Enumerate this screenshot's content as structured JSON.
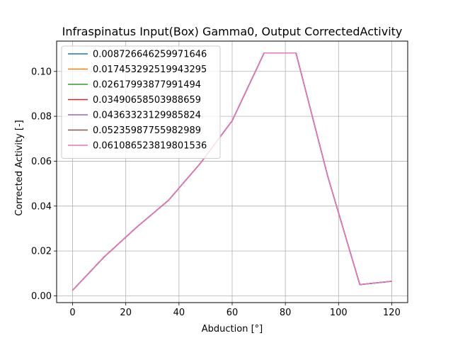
{
  "chart_data": {
    "type": "line",
    "title": "Infraspinatus Input(Box) Gamma0, Output CorrectedActivity",
    "xlabel": "Abduction [°]",
    "ylabel": "Corrected Activity [-]",
    "xlim": [
      -6,
      126
    ],
    "ylim": [
      -0.003,
      0.1135
    ],
    "xticks": [
      0,
      20,
      40,
      60,
      80,
      100,
      120
    ],
    "xtick_labels": [
      "0",
      "20",
      "40",
      "60",
      "80",
      "100",
      "120"
    ],
    "yticks": [
      0.0,
      0.02,
      0.04,
      0.06,
      0.08,
      0.1
    ],
    "ytick_labels": [
      "0.00",
      "0.02",
      "0.04",
      "0.06",
      "0.08",
      "0.10"
    ],
    "grid": true,
    "legend_position": "top-left",
    "x": [
      0,
      12,
      24,
      36,
      48,
      60,
      72,
      84,
      96,
      108,
      120
    ],
    "series": [
      {
        "name": "0.008726646259971646",
        "color": "#1f77b4",
        "values": [
          0.0025,
          0.0175,
          0.0305,
          0.0425,
          0.059,
          0.078,
          0.1082,
          0.1082,
          0.053,
          0.005,
          0.0065
        ]
      },
      {
        "name": "0.017453292519943295",
        "color": "#ff7f0e",
        "values": [
          0.0025,
          0.0175,
          0.0305,
          0.0425,
          0.059,
          0.078,
          0.1082,
          0.1082,
          0.053,
          0.005,
          0.0065
        ]
      },
      {
        "name": "0.02617993877991494",
        "color": "#2ca02c",
        "values": [
          0.0025,
          0.0175,
          0.0305,
          0.0425,
          0.059,
          0.078,
          0.1082,
          0.1082,
          0.053,
          0.005,
          0.0065
        ]
      },
      {
        "name": "0.03490658503988659",
        "color": "#d62728",
        "values": [
          0.0025,
          0.0175,
          0.0305,
          0.0425,
          0.059,
          0.078,
          0.1082,
          0.1082,
          0.053,
          0.005,
          0.0065
        ]
      },
      {
        "name": "0.04363323129985824",
        "color": "#9467bd",
        "values": [
          0.0025,
          0.0175,
          0.0305,
          0.0425,
          0.059,
          0.078,
          0.1082,
          0.1082,
          0.053,
          0.005,
          0.0065
        ]
      },
      {
        "name": "0.05235987755982989",
        "color": "#8c564b",
        "values": [
          0.0025,
          0.0175,
          0.0305,
          0.0425,
          0.059,
          0.078,
          0.1082,
          0.1082,
          0.053,
          0.005,
          0.0065
        ]
      },
      {
        "name": "0.061086523819801536",
        "color": "#e377c2",
        "values": [
          0.0025,
          0.0175,
          0.0305,
          0.0425,
          0.059,
          0.078,
          0.1082,
          0.1082,
          0.053,
          0.005,
          0.0065
        ]
      }
    ]
  }
}
